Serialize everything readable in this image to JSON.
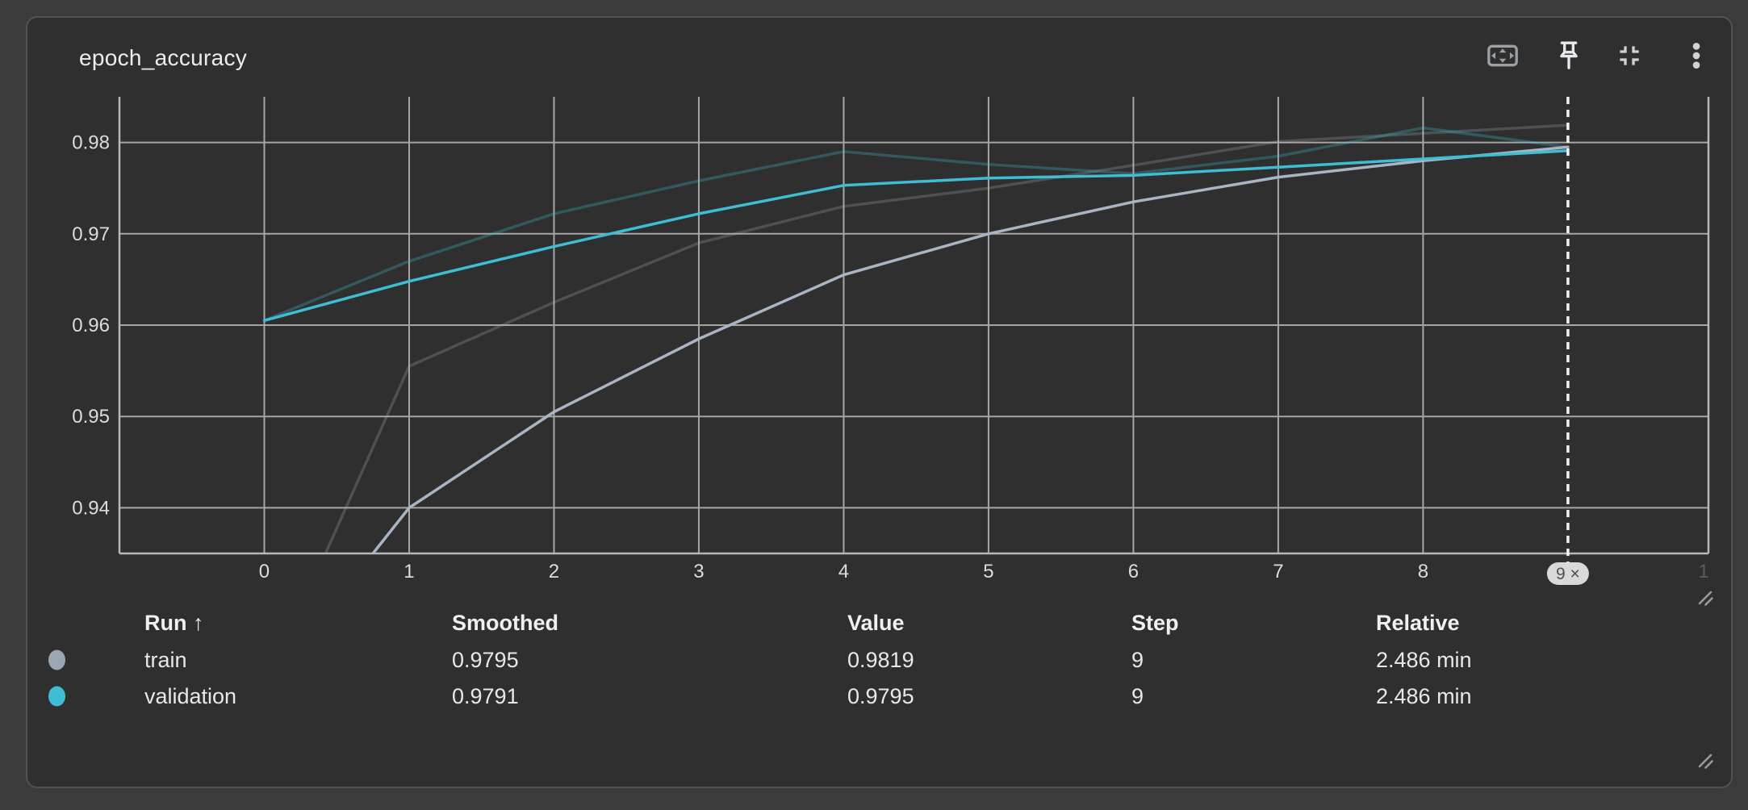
{
  "card": {
    "title": "epoch_accuracy",
    "bg": "#2f2f2f",
    "page_bg": "#3b3b3b",
    "toolbar": {
      "icons": [
        "settings-overscan",
        "pin",
        "fullscreen-exit",
        "more-vertical"
      ]
    }
  },
  "chart_data": {
    "type": "line",
    "title": "epoch_accuracy",
    "x": [
      0,
      1,
      2,
      3,
      4,
      5,
      6,
      7,
      8,
      9
    ],
    "x_ticks": [
      0,
      1,
      2,
      3,
      4,
      5,
      6,
      7,
      8
    ],
    "y_ticks": [
      0.94,
      0.95,
      0.96,
      0.97,
      0.98
    ],
    "xlim": [
      -1.0,
      9.97
    ],
    "ylim": [
      0.935,
      0.985
    ],
    "grid": true,
    "legend_position": "table-below",
    "series": [
      {
        "name": "train-value",
        "run": "train",
        "smoothed": false,
        "color": "#a9b4c4",
        "opacity": 0.25,
        "values": [
          0.92,
          0.9555,
          0.9625,
          0.969,
          0.973,
          0.975,
          0.9775,
          0.9801,
          0.981,
          0.9819
        ]
      },
      {
        "name": "validation-value",
        "run": "validation",
        "smoothed": false,
        "color": "#3fbdd3",
        "opacity": 0.3,
        "values": [
          0.9605,
          0.967,
          0.9722,
          0.9758,
          0.979,
          0.9776,
          0.9766,
          0.9785,
          0.9816,
          0.9795
        ]
      },
      {
        "name": "train-smoothed",
        "run": "train",
        "smoothed": true,
        "color": "#a9b4c4",
        "opacity": 1,
        "values": [
          0.92,
          0.94,
          0.9505,
          0.9585,
          0.9655,
          0.97,
          0.9735,
          0.9762,
          0.978,
          0.9795
        ]
      },
      {
        "name": "validation-smoothed",
        "run": "validation",
        "smoothed": true,
        "color": "#3fbdd3",
        "opacity": 1,
        "values": [
          0.9605,
          0.9648,
          0.9686,
          0.9722,
          0.9753,
          0.9761,
          0.9764,
          0.9773,
          0.9782,
          0.9791
        ]
      }
    ],
    "cursor": {
      "step": 9,
      "badge": "9 ×"
    },
    "edge_label": "1",
    "colors": {
      "grid": "#a6a6a6",
      "axis": "#b8b8b8",
      "tick_text": "#dcdcdc",
      "cursor": "#f2f2f2",
      "badge_bg": "#d9d9d9",
      "badge_text": "#4d5156",
      "edge_label": "#5c5c5c"
    }
  },
  "table": {
    "headers": [
      "Run ↑",
      "Smoothed",
      "Value",
      "Step",
      "Relative"
    ],
    "rows": [
      {
        "run": "train",
        "color": "#9aa6b2",
        "smoothed": "0.9795",
        "value": "0.9819",
        "step": "9",
        "relative": "2.486 min"
      },
      {
        "run": "validation",
        "color": "#3fbdd3",
        "smoothed": "0.9791",
        "value": "0.9795",
        "step": "9",
        "relative": "2.486 min"
      }
    ]
  }
}
